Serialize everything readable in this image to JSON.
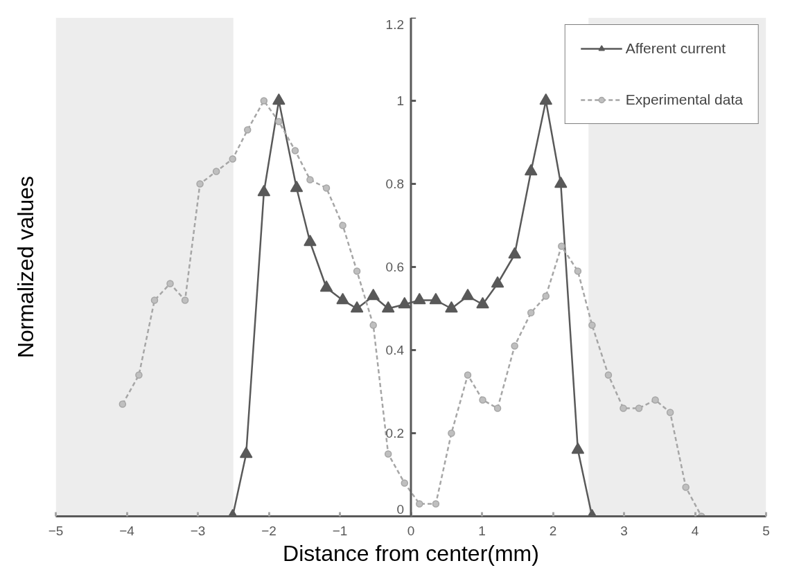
{
  "chart_data": {
    "type": "line",
    "xlabel": "Distance from center(mm)",
    "ylabel": "Normalized values",
    "xlim": [
      -5,
      5
    ],
    "xticks": [
      -5,
      -4,
      -3,
      -2,
      -1,
      0,
      1,
      2,
      3,
      4,
      5
    ],
    "ylim": [
      0,
      1.2
    ],
    "yticks": [
      0,
      0.2,
      0.4,
      0.6,
      0.8,
      1,
      1.2
    ],
    "grid": false,
    "legend": "top right",
    "bands": [
      {
        "axis": "x",
        "from": -5,
        "to": -2.5,
        "color": "#ededed"
      },
      {
        "axis": "x",
        "from": 2.5,
        "to": 5,
        "color": "#ededed"
      }
    ],
    "series": [
      {
        "name": "Afferent current",
        "color": "#595959",
        "marker": "triangle",
        "line_style": "solid",
        "x": [
          -2.51,
          -2.32,
          -2.07,
          -1.86,
          -1.61,
          -1.42,
          -1.19,
          -0.96,
          -0.76,
          -0.53,
          -0.32,
          -0.09,
          0.12,
          0.35,
          0.57,
          0.8,
          1.01,
          1.22,
          1.46,
          1.69,
          1.9,
          2.11,
          2.35,
          2.55
        ],
        "values": [
          0,
          0.15,
          0.78,
          1.0,
          0.79,
          0.66,
          0.55,
          0.52,
          0.5,
          0.53,
          0.5,
          0.51,
          0.52,
          0.52,
          0.5,
          0.53,
          0.51,
          0.56,
          0.63,
          0.83,
          1.0,
          0.8,
          0.16,
          0
        ]
      },
      {
        "name": "Experimental data",
        "color": "#a6a6a6",
        "marker": "circle",
        "line_style": "dashed",
        "x": [
          -4.06,
          -3.83,
          -3.61,
          -3.39,
          -3.18,
          -2.97,
          -2.74,
          -2.51,
          -2.3,
          -2.07,
          -1.86,
          -1.63,
          -1.42,
          -1.19,
          -0.96,
          -0.76,
          -0.53,
          -0.32,
          -0.09,
          0.12,
          0.35,
          0.57,
          0.8,
          1.01,
          1.22,
          1.46,
          1.69,
          1.9,
          2.12,
          2.35,
          2.55,
          2.78,
          2.99,
          3.21,
          3.44,
          3.65,
          3.87,
          4.09
        ],
        "values": [
          0.27,
          0.34,
          0.52,
          0.56,
          0.52,
          0.8,
          0.83,
          0.86,
          0.93,
          1.0,
          0.95,
          0.88,
          0.81,
          0.79,
          0.7,
          0.59,
          0.46,
          0.15,
          0.08,
          0.03,
          0.03,
          0.2,
          0.34,
          0.28,
          0.26,
          0.41,
          0.49,
          0.53,
          0.65,
          0.59,
          0.46,
          0.34,
          0.26,
          0.26,
          0.28,
          0.25,
          0.07,
          0
        ]
      }
    ]
  }
}
